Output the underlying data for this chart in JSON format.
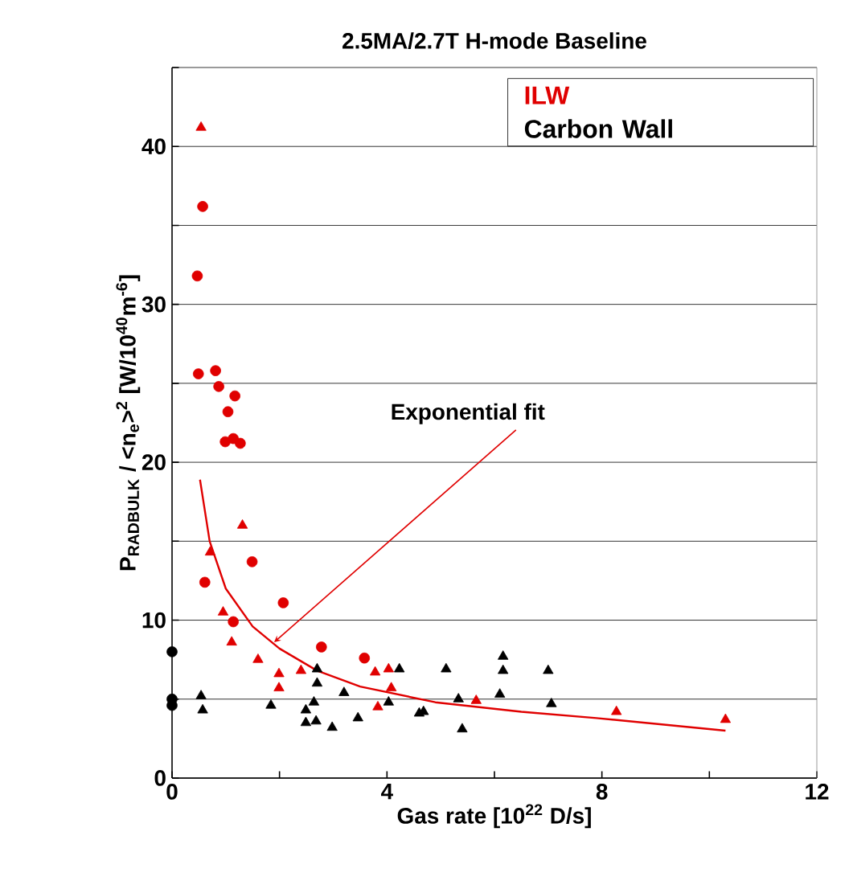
{
  "chart_data": {
    "type": "scatter",
    "title": "2.5MA/2.7T H-mode Baseline",
    "xlabel": "Gas rate [10$^{22}$ D/s]",
    "ylabel": "P$_{RADBULK}$ / <n$_{e}$>$^{2}$ [W/10$^{40}$m$^{-6}$]",
    "xlim": [
      0,
      12
    ],
    "ylim": [
      0,
      45
    ],
    "xticks": [
      0,
      {
        "value": 2,
        "label": null
      },
      4,
      {
        "value": 6,
        "label": null
      },
      8,
      {
        "value": 10,
        "label": null
      },
      12
    ],
    "yticks": [
      0,
      {
        "value": 5,
        "label": null
      },
      10,
      {
        "value": 15,
        "label": null
      },
      20,
      {
        "value": 25,
        "label": null
      },
      30,
      {
        "value": 35,
        "label": null
      },
      40,
      {
        "value": 45,
        "label": null
      }
    ],
    "grid": "y",
    "legend": "top right",
    "annotations": [
      {
        "text": "Exponential fit",
        "x": 1.9,
        "y": 8.6
      }
    ],
    "series": [
      {
        "name": "ILW",
        "color": "#e00000",
        "marker": "circle",
        "x": [
          0.57,
          0.47,
          0.49,
          0.81,
          0.87,
          1.17,
          1.04,
          0.99,
          1.14,
          1.27,
          1.49,
          0.61,
          2.07,
          1.14,
          2.78,
          3.58
        ],
        "values": [
          36.2,
          31.8,
          25.6,
          25.8,
          24.8,
          24.2,
          23.2,
          21.3,
          21.5,
          21.2,
          13.7,
          12.4,
          11.1,
          9.9,
          8.3,
          7.6
        ]
      },
      {
        "color": "#e00000",
        "marker": "triangle",
        "x": [
          0.54,
          1.31,
          0.71,
          0.95,
          1.11,
          1.6,
          1.99,
          1.99,
          2.4,
          3.78,
          4.03,
          4.08,
          3.83,
          5.66,
          8.27,
          10.3
        ],
        "values": [
          41.2,
          16.0,
          14.3,
          10.5,
          8.6,
          7.5,
          6.6,
          5.7,
          6.8,
          6.7,
          6.9,
          5.7,
          4.5,
          4.9,
          4.2,
          3.7
        ]
      },
      {
        "name": "Carbon Wall",
        "color": "#000000",
        "marker": "circle",
        "x": [
          0,
          0,
          0
        ],
        "values": [
          8.0,
          5.0,
          4.6
        ]
      },
      {
        "color": "#000000",
        "marker": "triangle",
        "x": [
          0.54,
          0.57,
          1.84,
          2.49,
          2.49,
          2.68,
          2.7,
          2.7,
          2.64,
          2.98,
          3.2,
          3.46,
          4.23,
          4.03,
          4.6,
          4.68,
          5.1,
          5.33,
          5.4,
          6.16,
          6.16,
          6.1,
          7.0,
          7.06
        ],
        "values": [
          5.2,
          4.3,
          4.6,
          4.3,
          3.5,
          3.6,
          6.9,
          6.0,
          4.8,
          3.2,
          5.4,
          3.8,
          6.9,
          4.8,
          4.1,
          4.2,
          6.9,
          5.0,
          3.1,
          7.7,
          6.8,
          5.3,
          6.8,
          4.7
        ]
      },
      {
        "type": "line",
        "color": "#e00000",
        "marker": "none",
        "line_style": "solid",
        "x": [
          0.52,
          0.7,
          1,
          1.5,
          2,
          2.7,
          3.5,
          4.9,
          6.5,
          7.9,
          10.3
        ],
        "values": [
          18.9,
          15,
          12,
          9.6,
          8.2,
          6.8,
          5.8,
          4.8,
          4.2,
          3.8,
          3.0
        ]
      }
    ]
  }
}
